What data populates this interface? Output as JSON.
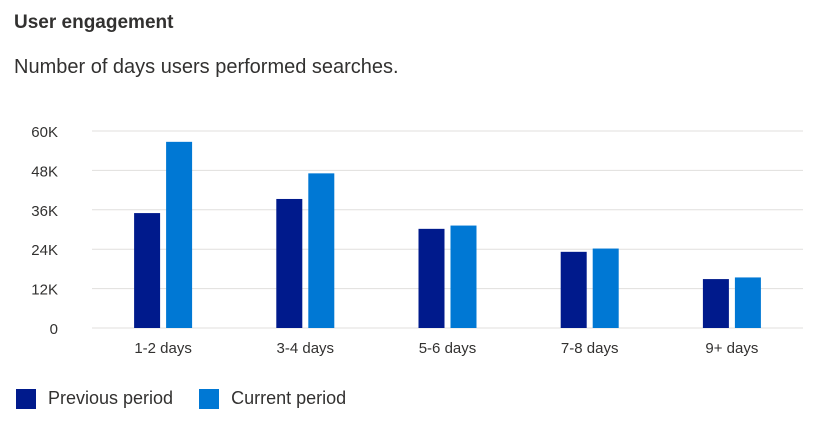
{
  "card": {
    "title": "User engagement",
    "subtitle": "Number of days users performed searches."
  },
  "colors": {
    "previous": "#001a8c",
    "current": "#0078d4",
    "grid": "#e1dfdd",
    "axis_text": "#323130"
  },
  "chart_data": {
    "type": "bar",
    "title": "",
    "xlabel": "",
    "ylabel": "",
    "categories": [
      "1-2 days",
      "3-4 days",
      "5-6 days",
      "7-8 days",
      "9+ days"
    ],
    "series": [
      {
        "name": "Previous period",
        "values": [
          35000,
          39300,
          30200,
          23200,
          14900
        ]
      },
      {
        "name": "Current period",
        "values": [
          56700,
          47100,
          31200,
          24200,
          15400
        ]
      }
    ],
    "ylim": [
      0,
      60000
    ],
    "yticks": [
      {
        "value": 0,
        "label": "0"
      },
      {
        "value": 12000,
        "label": "12K"
      },
      {
        "value": 24000,
        "label": "24K"
      },
      {
        "value": 36000,
        "label": "36K"
      },
      {
        "value": 48000,
        "label": "48K"
      },
      {
        "value": 60000,
        "label": "60K"
      }
    ],
    "grid": true,
    "legend_position": "bottom-left"
  }
}
